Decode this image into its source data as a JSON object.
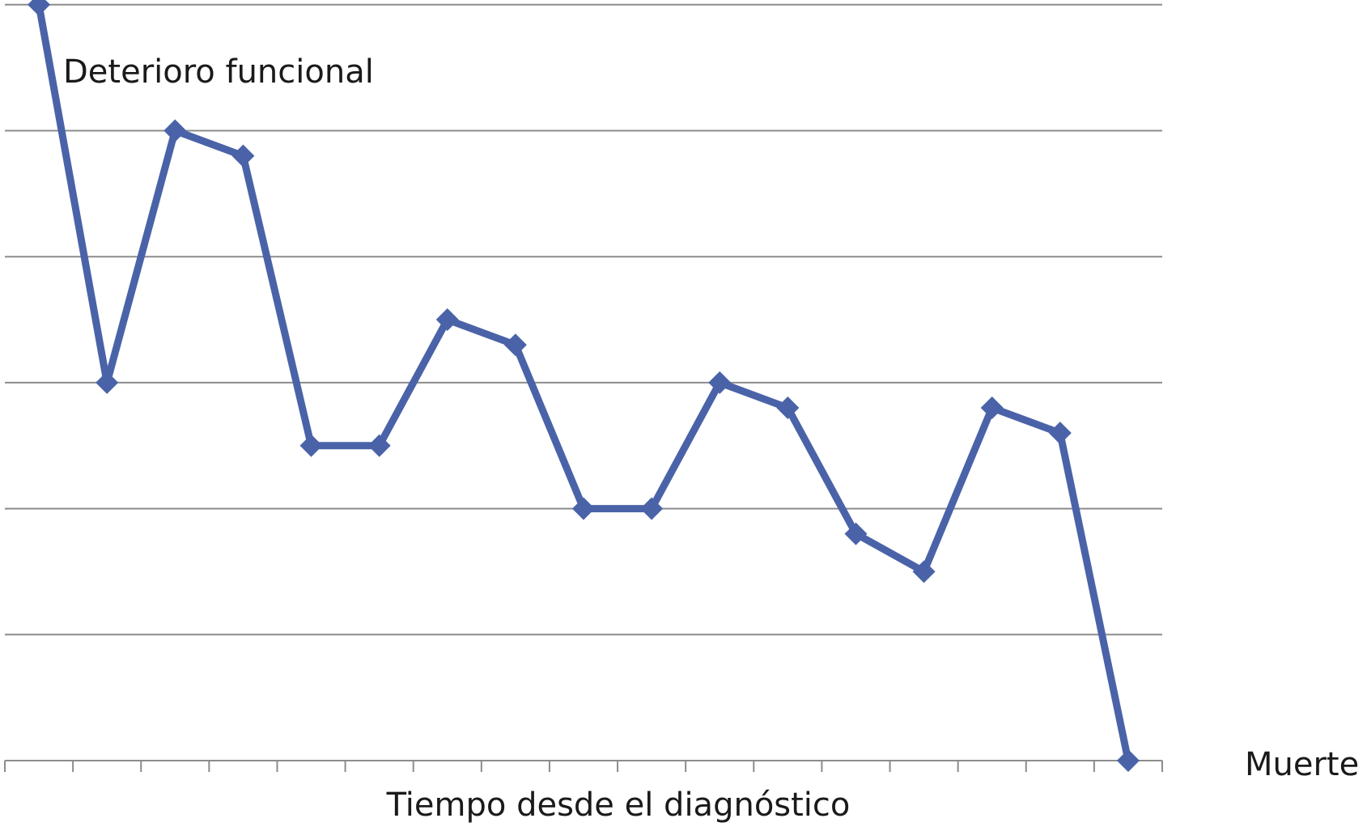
{
  "chart_data": {
    "type": "line",
    "ylabel": "Deterioro funcional",
    "xlabel": "Tiempo desde el diagnóstico",
    "end_label": "Muerte",
    "x": [
      1,
      2,
      3,
      4,
      5,
      6,
      7,
      8,
      9,
      10,
      11,
      12,
      13,
      14,
      15,
      16,
      17
    ],
    "series": [
      {
        "values": [
          6,
          3,
          5,
          4.8,
          2.5,
          2.5,
          3.5,
          3.3,
          2,
          2,
          3,
          2.8,
          1.8,
          1.5,
          2.8,
          2.6,
          0
        ],
        "color": "#4a63a8",
        "marker": "diamond"
      }
    ],
    "ylim": [
      0,
      6
    ],
    "y_gridlines": [
      1,
      2,
      3,
      4,
      5,
      6,
      7
    ],
    "x_tick_count": 18,
    "y_tick_labels": false,
    "x_tick_labels": false,
    "grid": true,
    "legend": false
  }
}
